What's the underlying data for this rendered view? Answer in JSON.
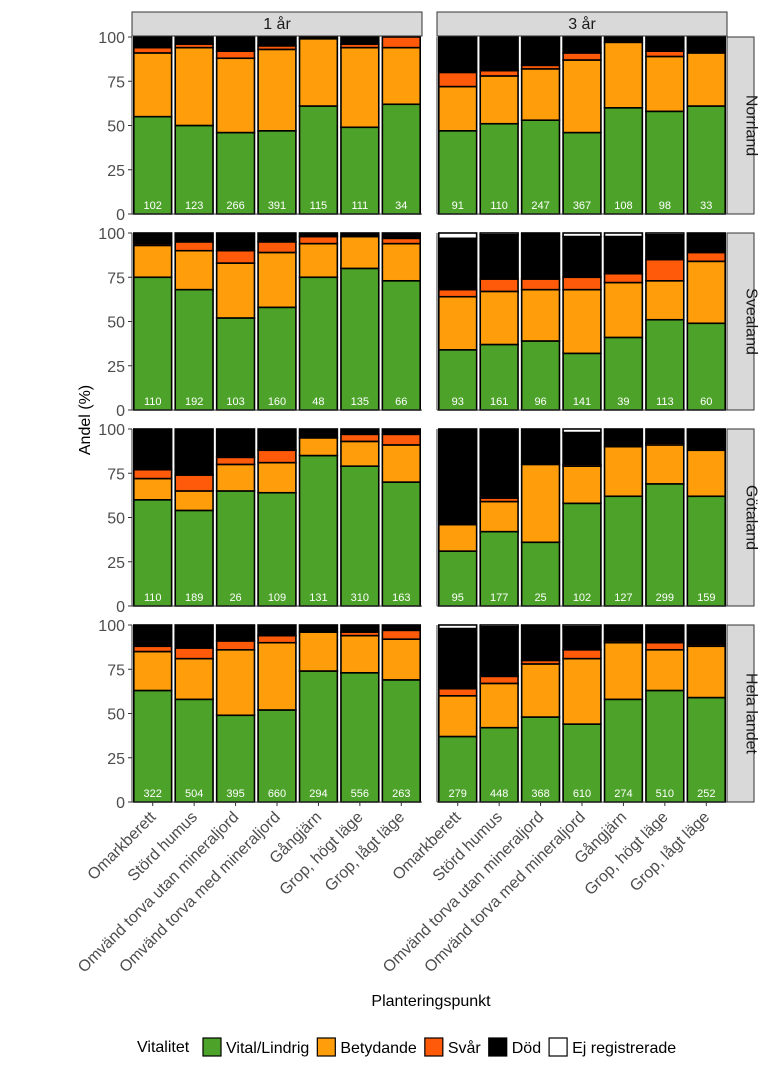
{
  "chart_data": {
    "type": "bar",
    "stacked": true,
    "xlabel": "Planteringspunkt",
    "ylabel": "Andel (%)",
    "ylim": [
      0,
      100
    ],
    "yticks": [
      0,
      25,
      50,
      75,
      100
    ],
    "categories": [
      "Omarkberett",
      "Störd humus",
      "Omvänd torva utan mineraljord",
      "Omvänd torva med mineraljord",
      "Gångjärn",
      "Grop, högt läge",
      "Grop, lågt läge"
    ],
    "column_facets": [
      "1 år",
      "3 år"
    ],
    "row_facets": [
      "Norrland",
      "Svealand",
      "Götaland",
      "Hela landet"
    ],
    "legend": {
      "title": "Vitalitet",
      "position": "bottom",
      "entries": [
        {
          "name": "Vital/Lindrig",
          "color": "#4da32a"
        },
        {
          "name": "Betydande",
          "color": "#ff9d0a"
        },
        {
          "name": "Svår",
          "color": "#ff5a0a"
        },
        {
          "name": "Död",
          "color": "#000000"
        },
        {
          "name": "Ej registrerade",
          "color": "#ffffff"
        }
      ]
    },
    "panels": [
      {
        "row": "Norrland",
        "col": "1 år",
        "n": [
          102,
          123,
          266,
          391,
          115,
          111,
          34
        ],
        "series": [
          [
            55,
            50,
            46,
            47,
            61,
            49,
            62
          ],
          [
            36,
            44,
            42,
            46,
            38,
            45,
            32
          ],
          [
            3,
            2,
            4,
            2,
            0,
            2,
            6
          ],
          [
            6,
            4,
            8,
            5,
            1,
            4,
            0
          ],
          [
            0,
            0,
            0,
            0,
            0,
            0,
            0
          ]
        ]
      },
      {
        "row": "Norrland",
        "col": "3 år",
        "n": [
          91,
          110,
          247,
          367,
          108,
          98,
          33
        ],
        "series": [
          [
            47,
            51,
            53,
            46,
            60,
            58,
            61
          ],
          [
            25,
            27,
            29,
            41,
            37,
            31,
            30
          ],
          [
            8,
            3,
            2,
            4,
            0,
            3,
            0
          ],
          [
            20,
            19,
            16,
            9,
            3,
            8,
            9
          ],
          [
            0,
            0,
            0,
            0,
            0,
            0,
            0
          ]
        ]
      },
      {
        "row": "Svealand",
        "col": "1 år",
        "n": [
          110,
          192,
          103,
          160,
          48,
          135,
          66
        ],
        "series": [
          [
            75,
            68,
            52,
            58,
            75,
            80,
            73
          ],
          [
            18,
            22,
            31,
            31,
            19,
            18,
            21
          ],
          [
            1,
            5,
            7,
            6,
            4,
            0,
            3
          ],
          [
            6,
            5,
            10,
            5,
            2,
            2,
            3
          ],
          [
            0,
            0,
            0,
            0,
            0,
            0,
            0
          ]
        ]
      },
      {
        "row": "Svealand",
        "col": "3 år",
        "n": [
          93,
          161,
          96,
          141,
          39,
          113,
          60
        ],
        "series": [
          [
            34,
            37,
            39,
            32,
            41,
            51,
            49
          ],
          [
            30,
            30,
            29,
            36,
            31,
            22,
            35
          ],
          [
            4,
            7,
            6,
            7,
            5,
            12,
            5
          ],
          [
            29,
            25,
            26,
            23,
            21,
            14,
            11
          ],
          [
            3,
            1,
            0,
            2,
            2,
            1,
            0
          ]
        ]
      },
      {
        "row": "Götaland",
        "col": "1 år",
        "n": [
          110,
          189,
          26,
          109,
          131,
          310,
          163
        ],
        "series": [
          [
            60,
            54,
            65,
            64,
            85,
            79,
            70
          ],
          [
            12,
            11,
            15,
            17,
            10,
            14,
            21
          ],
          [
            5,
            9,
            4,
            7,
            0,
            4,
            6
          ],
          [
            23,
            26,
            16,
            12,
            5,
            3,
            3
          ],
          [
            0,
            0,
            0,
            0,
            0,
            0,
            0
          ]
        ]
      },
      {
        "row": "Götaland",
        "col": "3 år",
        "n": [
          95,
          177,
          25,
          102,
          127,
          299,
          159
        ],
        "series": [
          [
            31,
            42,
            36,
            58,
            62,
            69,
            62
          ],
          [
            15,
            17,
            44,
            21,
            28,
            22,
            26
          ],
          [
            0,
            2,
            0,
            1,
            0,
            1,
            0
          ],
          [
            54,
            39,
            20,
            18,
            10,
            8,
            12
          ],
          [
            0,
            0,
            0,
            2,
            0,
            0,
            0
          ]
        ]
      },
      {
        "row": "Hela landet",
        "col": "1 år",
        "n": [
          322,
          504,
          395,
          660,
          294,
          556,
          263
        ],
        "series": [
          [
            63,
            58,
            49,
            52,
            74,
            73,
            69
          ],
          [
            22,
            23,
            37,
            38,
            22,
            21,
            23
          ],
          [
            3,
            6,
            5,
            4,
            0,
            2,
            5
          ],
          [
            12,
            13,
            9,
            6,
            4,
            4,
            3
          ],
          [
            0,
            0,
            0,
            0,
            0,
            0,
            0
          ]
        ]
      },
      {
        "row": "Hela landet",
        "col": "3 år",
        "n": [
          279,
          448,
          368,
          610,
          274,
          510,
          252
        ],
        "series": [
          [
            37,
            42,
            48,
            44,
            58,
            63,
            59
          ],
          [
            23,
            25,
            30,
            37,
            32,
            23,
            29
          ],
          [
            4,
            4,
            2,
            5,
            1,
            4,
            1
          ],
          [
            34,
            28,
            20,
            13,
            9,
            10,
            11
          ],
          [
            2,
            1,
            0,
            1,
            0,
            0,
            0
          ]
        ]
      }
    ]
  }
}
